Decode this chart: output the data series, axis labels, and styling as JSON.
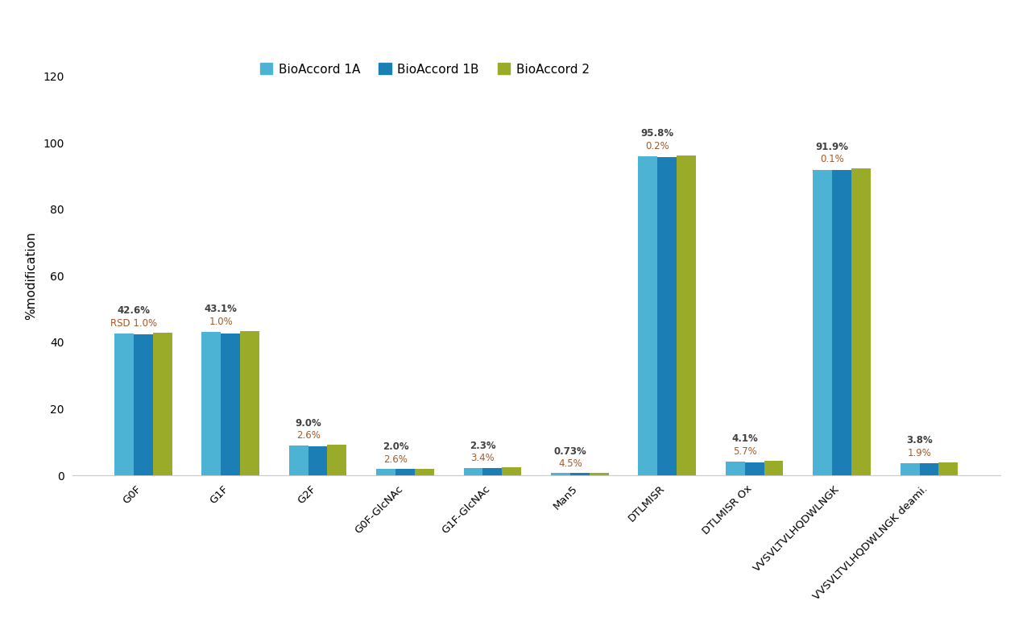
{
  "categories": [
    "G0F",
    "G1F",
    "G2F",
    "G0F-GlcNAc",
    "G1F-GlcNAc",
    "Man5",
    "DTLMISR",
    "DTLMISR Ox",
    "VVSVLTVLHQDWLNGK",
    "VVSVLTVLHQDWLNGK deami."
  ],
  "bioaccord_1A": [
    42.6,
    43.1,
    9.0,
    2.0,
    2.3,
    0.73,
    95.8,
    4.1,
    91.9,
    3.8
  ],
  "bioaccord_1B": [
    42.3,
    42.7,
    8.8,
    1.9,
    2.2,
    0.72,
    95.6,
    3.9,
    91.8,
    3.7
  ],
  "bioaccord_2": [
    43.0,
    43.5,
    9.2,
    2.1,
    2.4,
    0.74,
    96.2,
    4.4,
    92.2,
    3.9
  ],
  "label_black": [
    "42.6%",
    "43.1%",
    "9.0%",
    "2.0%",
    "2.3%",
    "0.73%",
    "95.8%",
    "4.1%",
    "91.9%",
    "3.8%"
  ],
  "label_brown": [
    "RSD 1.0%",
    "1.0%",
    "2.6%",
    "2.6%",
    "3.4%",
    "4.5%",
    "0.2%",
    "5.7%",
    "0.1%",
    "1.9%"
  ],
  "color_1A": "#4db3d4",
  "color_1B": "#1b7eb5",
  "color_2": "#9aab2a",
  "color_label_black": "#404040",
  "color_label_brown": "#a05a2c",
  "ylabel": "%modification",
  "ylim": [
    0,
    120
  ],
  "yticks": [
    0,
    20,
    40,
    60,
    80,
    100,
    120
  ],
  "legend_labels": [
    "BioAccord 1A",
    "BioAccord 1B",
    "BioAccord 2"
  ],
  "bar_width": 0.22
}
